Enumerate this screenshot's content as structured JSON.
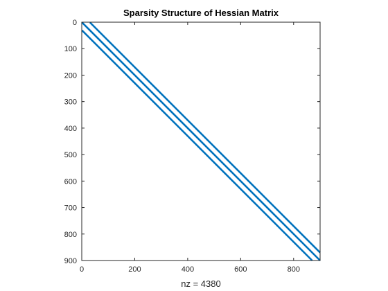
{
  "chart_data": {
    "type": "scatter",
    "title": "Sparsity Structure of Hessian Matrix",
    "xlabel": "nz = 4380",
    "ylabel": "",
    "matrix_size": 900,
    "nonzeros": 4380,
    "xlim": [
      0,
      900
    ],
    "ylim": [
      0,
      900
    ],
    "y_axis_reversed": true,
    "grid": false,
    "x_ticks": [
      0,
      200,
      400,
      600,
      800
    ],
    "y_ticks": [
      0,
      100,
      200,
      300,
      400,
      500,
      600,
      700,
      800,
      900
    ],
    "x_tick_labels": [
      "0",
      "200",
      "400",
      "600",
      "800"
    ],
    "y_tick_labels": [
      "0",
      "100",
      "200",
      "300",
      "400",
      "500",
      "600",
      "700",
      "800",
      "900"
    ],
    "diagonal_offsets": [
      -30,
      0,
      30
    ],
    "series": [
      {
        "color": "#0072bd",
        "segments": [
          {
            "x": [
              1,
              870
            ],
            "y": [
              31,
              900
            ]
          },
          {
            "x": [
              1,
              900
            ],
            "y": [
              1,
              900
            ]
          },
          {
            "x": [
              31,
              900
            ],
            "y": [
              1,
              870
            ]
          }
        ]
      }
    ]
  }
}
